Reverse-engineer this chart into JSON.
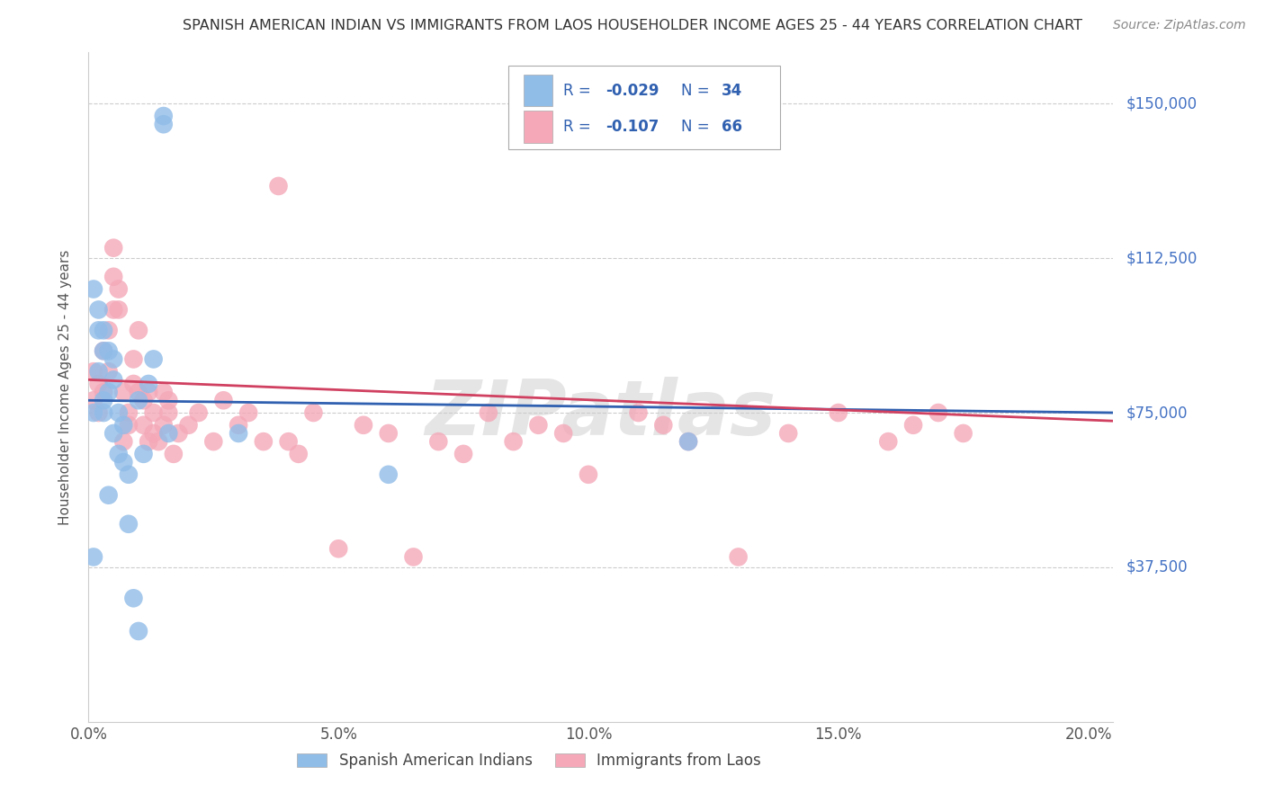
{
  "title": "SPANISH AMERICAN INDIAN VS IMMIGRANTS FROM LAOS HOUSEHOLDER INCOME AGES 25 - 44 YEARS CORRELATION CHART",
  "source": "Source: ZipAtlas.com",
  "ylabel": "Householder Income Ages 25 - 44 years",
  "xtick_labels": [
    "0.0%",
    "5.0%",
    "10.0%",
    "15.0%",
    "20.0%"
  ],
  "xtick_vals": [
    0.0,
    0.05,
    0.1,
    0.15,
    0.2
  ],
  "ytick_labels": [
    "$37,500",
    "$75,000",
    "$112,500",
    "$150,000"
  ],
  "ytick_vals": [
    37500,
    75000,
    112500,
    150000
  ],
  "ylim": [
    0,
    162500
  ],
  "xlim": [
    0.0,
    0.205
  ],
  "blue_color": "#90bce8",
  "pink_color": "#f4a8b8",
  "line_blue_color": "#3060b0",
  "line_pink_color": "#d04060",
  "watermark": "ZIPatlas",
  "blue_x": [
    0.001,
    0.001,
    0.002,
    0.002,
    0.003,
    0.003,
    0.004,
    0.005,
    0.005,
    0.006,
    0.006,
    0.007,
    0.008,
    0.009,
    0.01,
    0.01,
    0.011,
    0.012,
    0.013,
    0.015,
    0.015,
    0.016,
    0.03,
    0.06,
    0.12,
    0.001,
    0.002,
    0.003,
    0.004,
    0.005,
    0.007,
    0.008,
    0.003,
    0.004
  ],
  "blue_y": [
    40000,
    75000,
    85000,
    95000,
    78000,
    90000,
    80000,
    88000,
    70000,
    75000,
    65000,
    72000,
    60000,
    30000,
    22000,
    78000,
    65000,
    82000,
    88000,
    145000,
    147000,
    70000,
    70000,
    60000,
    68000,
    105000,
    100000,
    95000,
    55000,
    83000,
    63000,
    48000,
    75000,
    90000
  ],
  "pink_x": [
    0.001,
    0.001,
    0.002,
    0.002,
    0.003,
    0.003,
    0.004,
    0.004,
    0.005,
    0.005,
    0.005,
    0.006,
    0.006,
    0.007,
    0.007,
    0.008,
    0.008,
    0.009,
    0.009,
    0.01,
    0.01,
    0.011,
    0.011,
    0.012,
    0.012,
    0.013,
    0.013,
    0.014,
    0.015,
    0.015,
    0.016,
    0.016,
    0.017,
    0.018,
    0.02,
    0.022,
    0.025,
    0.027,
    0.03,
    0.032,
    0.035,
    0.038,
    0.04,
    0.042,
    0.045,
    0.05,
    0.055,
    0.06,
    0.065,
    0.07,
    0.075,
    0.08,
    0.085,
    0.09,
    0.095,
    0.1,
    0.11,
    0.115,
    0.12,
    0.13,
    0.14,
    0.15,
    0.16,
    0.165,
    0.17,
    0.175
  ],
  "pink_y": [
    78000,
    85000,
    75000,
    82000,
    80000,
    90000,
    85000,
    95000,
    100000,
    108000,
    115000,
    105000,
    100000,
    80000,
    68000,
    75000,
    72000,
    82000,
    88000,
    80000,
    95000,
    78000,
    72000,
    80000,
    68000,
    75000,
    70000,
    68000,
    72000,
    80000,
    75000,
    78000,
    65000,
    70000,
    72000,
    75000,
    68000,
    78000,
    72000,
    75000,
    68000,
    130000,
    68000,
    65000,
    75000,
    42000,
    72000,
    70000,
    40000,
    68000,
    65000,
    75000,
    68000,
    72000,
    70000,
    60000,
    75000,
    72000,
    68000,
    40000,
    70000,
    75000,
    68000,
    72000,
    75000,
    70000
  ]
}
